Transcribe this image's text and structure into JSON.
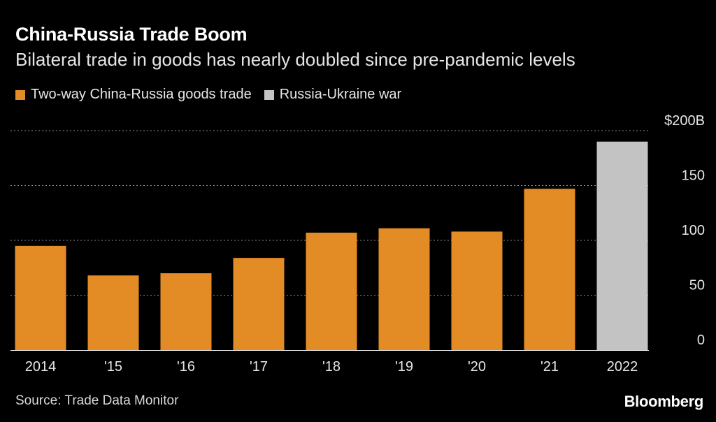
{
  "colors": {
    "background": "#000000",
    "trade": "#E38B24",
    "war": "#C3C3C3",
    "grid": "#8a8a8a",
    "text": "#e6e6e6"
  },
  "header": {
    "title": "China-Russia Trade Boom",
    "subtitle": "Bilateral trade in goods has nearly doubled since pre-pandemic levels"
  },
  "legend": {
    "items": [
      {
        "label": "Two-way China-Russia goods trade",
        "color": "#E38B24"
      },
      {
        "label": "Russia-Ukraine war",
        "color": "#C3C3C3"
      }
    ]
  },
  "footer": {
    "source": "Source: Trade Data Monitor",
    "logo": "Bloomberg"
  },
  "chart_data": {
    "type": "bar",
    "categories": [
      "2014",
      "'15",
      "'16",
      "'17",
      "'18",
      "'19",
      "'20",
      "'21",
      "2022"
    ],
    "values": [
      95,
      68,
      70,
      84,
      107,
      111,
      108,
      147,
      190
    ],
    "highlight": [
      false,
      false,
      false,
      false,
      false,
      false,
      false,
      false,
      true
    ],
    "ylim": [
      0,
      200
    ],
    "yticks": [
      0,
      50,
      100,
      150,
      200
    ],
    "ytick_labels": [
      "0",
      "50",
      "100",
      "150",
      "$200B"
    ],
    "y_axis_position": "right",
    "grid": true
  }
}
